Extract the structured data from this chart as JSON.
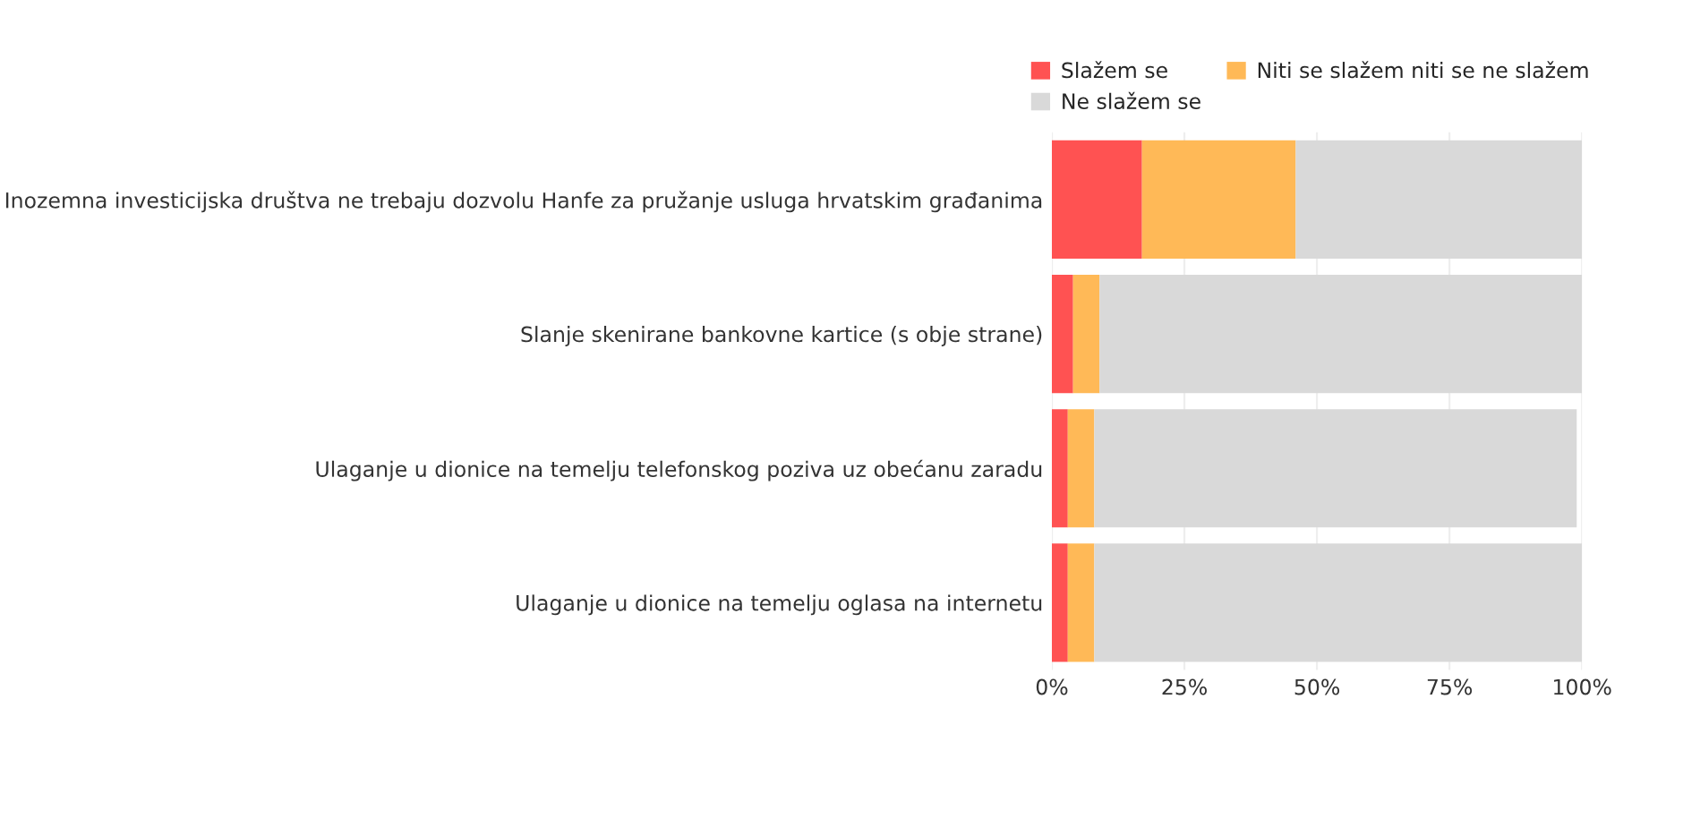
{
  "chart_data": {
    "type": "bar",
    "orientation": "horizontal",
    "stacked": true,
    "categories": [
      "Inozemna investicijska društva ne trebaju dozvolu Hanfe za pružanje usluga hrvatskim građanima",
      "Slanje skenirane bankovne kartice (s obje strane)",
      "Ulaganje u dionice na temelju telefonskog poziva uz obećanu zaradu",
      "Ulaganje u dionice na temelju oglasa na internetu"
    ],
    "series": [
      {
        "name": "Slažem se",
        "color": "#ff5252",
        "values": [
          17,
          4,
          3,
          3
        ]
      },
      {
        "name": "Niti se slažem niti se ne slažem",
        "color": "#ffb957",
        "values": [
          29,
          5,
          5,
          5
        ]
      },
      {
        "name": "Ne slažem se",
        "color": "#d9d9d9",
        "values": [
          54,
          91,
          91,
          92
        ]
      }
    ],
    "xlim": [
      0,
      100
    ],
    "xticks": [
      {
        "value": 0,
        "label": "0%"
      },
      {
        "value": 25,
        "label": "25%"
      },
      {
        "value": 50,
        "label": "50%"
      },
      {
        "value": 75,
        "label": "75%"
      },
      {
        "value": 100,
        "label": "100%"
      }
    ],
    "grid": "x",
    "legend": "top right"
  }
}
